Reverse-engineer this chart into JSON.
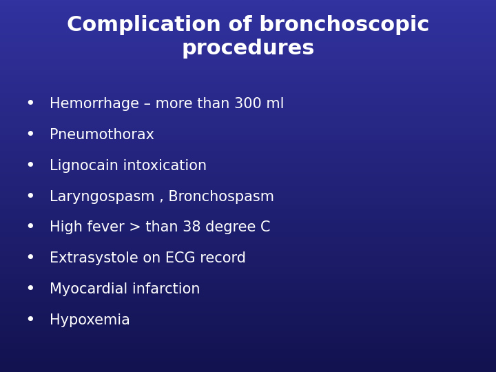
{
  "title_line1": "Complication of bronchoscopic",
  "title_line2": "procedures",
  "bullet_items": [
    "Hemorrhage – more than 300 ml",
    "Pneumothorax",
    "Lignocain intoxication",
    "Laryngospasm , Bronchospasm",
    "High fever > than 38 degree C",
    "Extrasystole on ECG record",
    "Myocardial infarction",
    "Hypoxemia"
  ],
  "bg_top": "#3333aa",
  "bg_bottom": "#1a1a60",
  "title_color": "#ffffff",
  "bullet_color": "#ffffff",
  "title_fontsize": 22,
  "bullet_fontsize": 15,
  "bullet_symbol": "•"
}
